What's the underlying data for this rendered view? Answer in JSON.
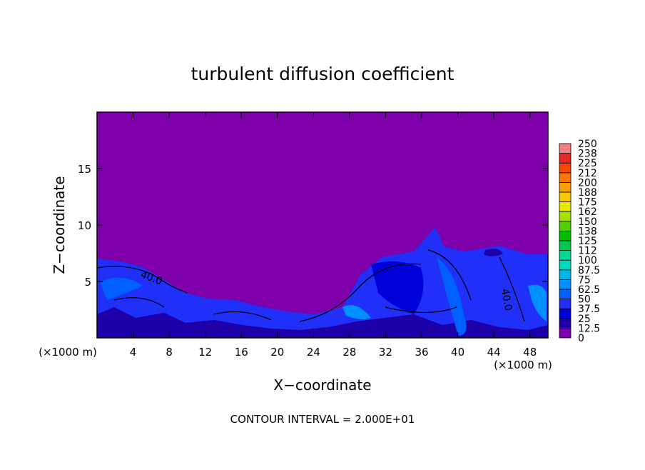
{
  "chart_data": {
    "type": "contour",
    "title": "turbulent diffusion coefficient",
    "x_label": "X−coordinate",
    "y_label": "Z−coordinate",
    "x_unit_left": "(×1000 m)",
    "x_unit_right": "(×1000 m)",
    "footer": "CONTOUR INTERVAL = 2.000E+01",
    "contour_labels": [
      "40.0",
      "40.0"
    ],
    "xlim": [
      0,
      50
    ],
    "xticks": [
      4,
      8,
      12,
      16,
      20,
      24,
      28,
      32,
      36,
      40,
      44,
      48
    ],
    "ylim": [
      0,
      20
    ],
    "yticks": [
      5,
      10,
      15
    ],
    "colorbar": {
      "levels": [
        0,
        12.5,
        25,
        37.5,
        50,
        62.5,
        75,
        87.5,
        100,
        112,
        125,
        138,
        150,
        162,
        175,
        188,
        200,
        212,
        225,
        238,
        250
      ],
      "colors": [
        "#7e00aa",
        "#1e00a8",
        "#0000d8",
        "#2030f8",
        "#0060ff",
        "#0090ff",
        "#00b8e8",
        "#00d8c0",
        "#00d890",
        "#00c850",
        "#00c000",
        "#50d000",
        "#a8e000",
        "#e8e800",
        "#f8c800",
        "#f8a000",
        "#f87800",
        "#f84800",
        "#e82828",
        "#f08080"
      ]
    }
  }
}
